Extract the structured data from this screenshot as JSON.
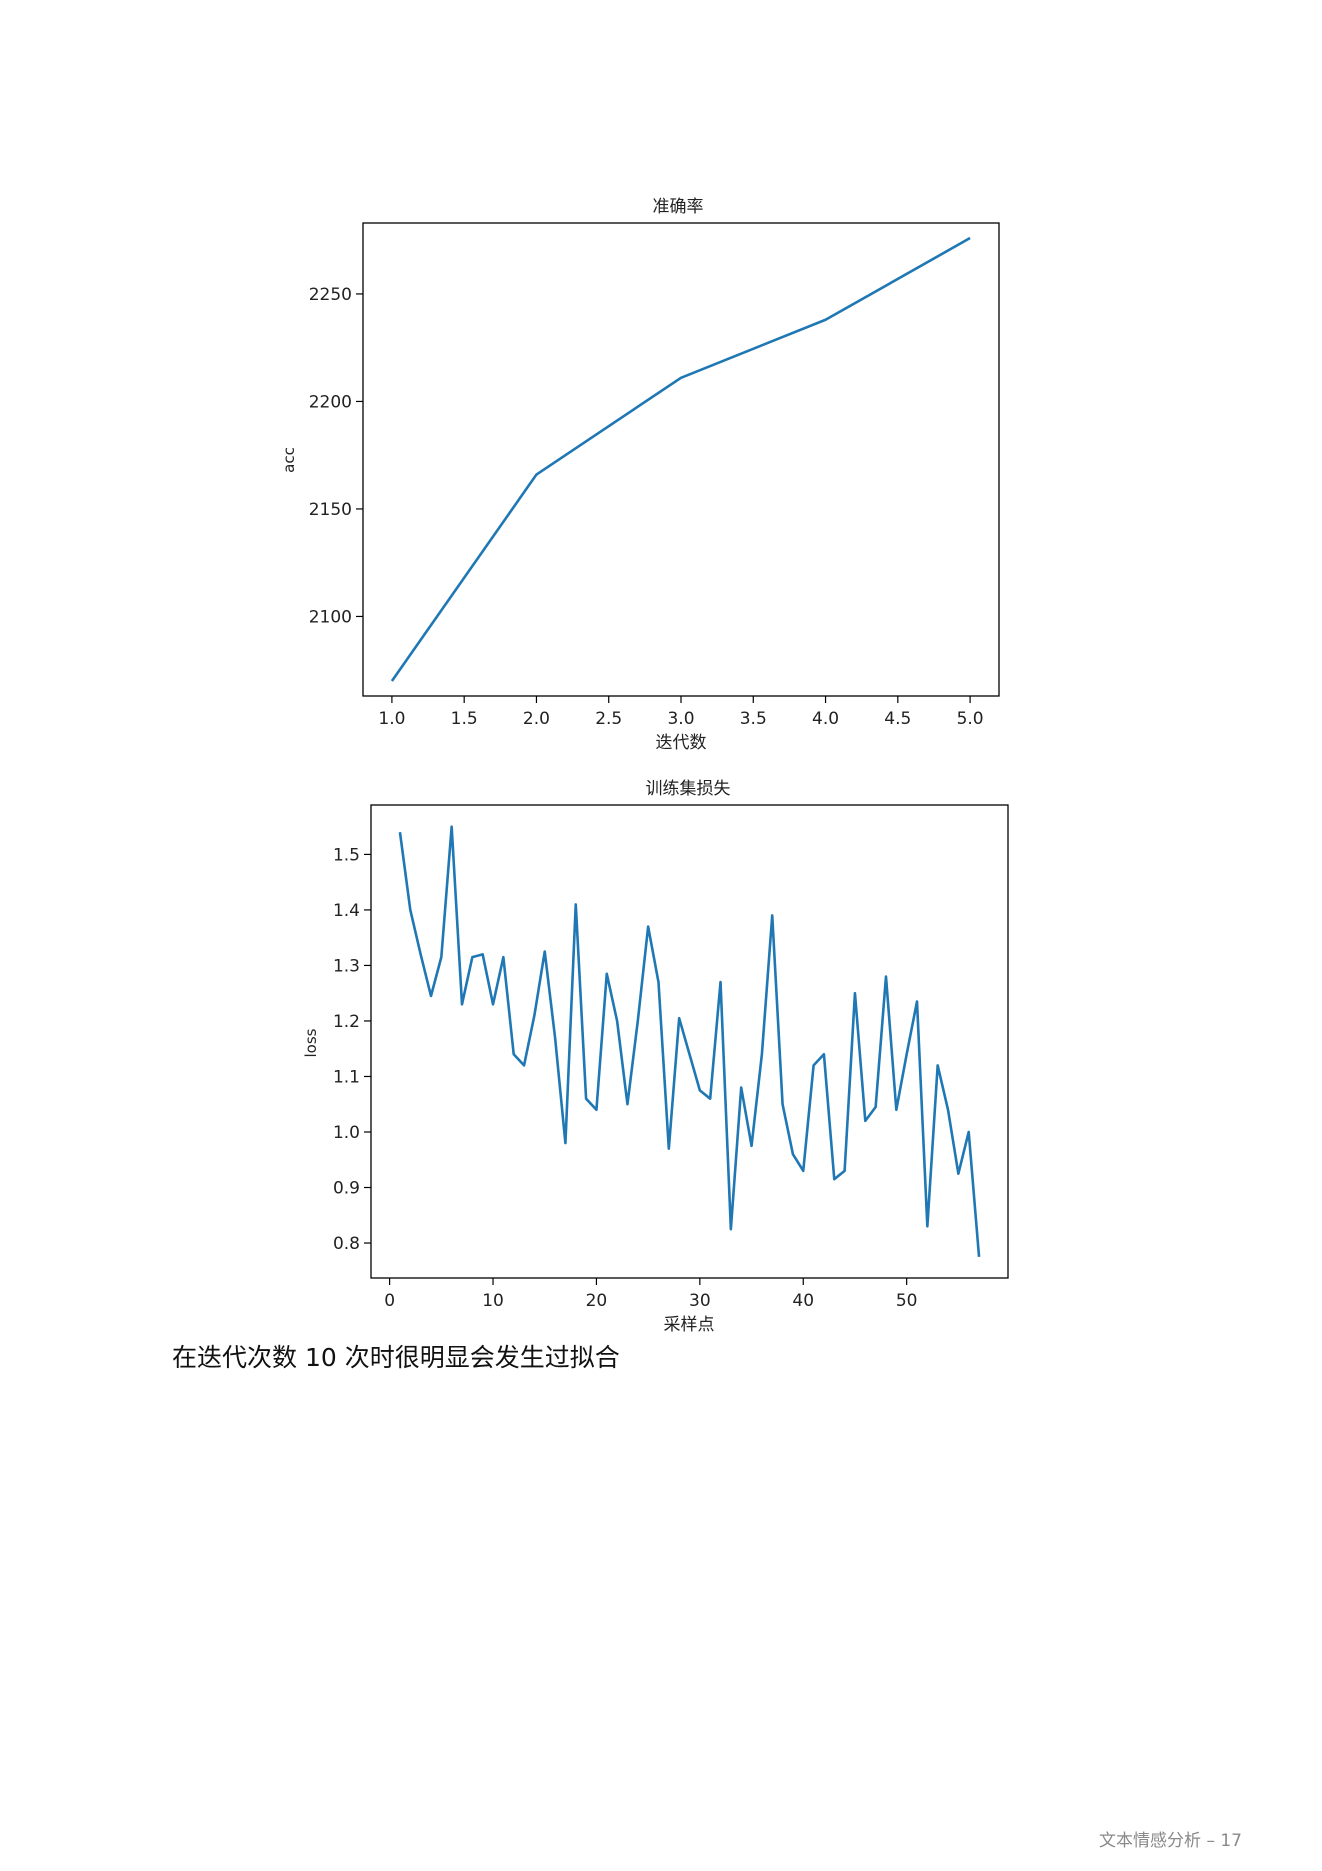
{
  "caption": "在迭代次数 10 次时很明显会发生过拟合",
  "footer": "文本情感分析 – 17",
  "line_color": "#1f77b4",
  "chart_data": [
    {
      "type": "line",
      "title": "准确率",
      "xlabel": "迭代数",
      "ylabel": "acc",
      "xlim": [
        0.8,
        5.2
      ],
      "ylim": [
        2063,
        2283
      ],
      "xticks": [
        1.0,
        1.5,
        2.0,
        2.5,
        3.0,
        3.5,
        4.0,
        4.5,
        5.0
      ],
      "xtick_labels": [
        "1.0",
        "1.5",
        "2.0",
        "2.5",
        "3.0",
        "3.5",
        "4.0",
        "4.5",
        "5.0"
      ],
      "yticks": [
        2100,
        2150,
        2200,
        2250
      ],
      "ytick_labels": [
        "2100",
        "2150",
        "2200",
        "2250"
      ],
      "grid": false,
      "series": [
        {
          "x": [
            1,
            2,
            3,
            4,
            5
          ],
          "y": [
            2070,
            2166,
            2211,
            2238,
            2276
          ]
        }
      ]
    },
    {
      "type": "line",
      "title": "训练集损失",
      "xlabel": "采样点",
      "ylabel": "loss",
      "xlim": [
        -1.8,
        59.8
      ],
      "ylim": [
        0.737,
        1.589
      ],
      "xticks": [
        0,
        10,
        20,
        30,
        40,
        50
      ],
      "xtick_labels": [
        "0",
        "10",
        "20",
        "30",
        "40",
        "50"
      ],
      "yticks": [
        0.8,
        0.9,
        1.0,
        1.1,
        1.2,
        1.3,
        1.4,
        1.5
      ],
      "ytick_labels": [
        "0.8",
        "0.9",
        "1.0",
        "1.1",
        "1.2",
        "1.3",
        "1.4",
        "1.5"
      ],
      "grid": false,
      "series": [
        {
          "x": [
            1,
            2,
            3,
            4,
            5,
            6,
            7,
            8,
            9,
            10,
            11,
            12,
            13,
            14,
            15,
            16,
            17,
            18,
            19,
            20,
            21,
            22,
            23,
            24,
            25,
            26,
            27,
            28,
            29,
            30,
            31,
            32,
            33,
            34,
            35,
            36,
            37,
            38,
            39,
            40,
            41,
            42,
            43,
            44,
            45,
            46,
            47,
            48,
            49,
            50,
            51,
            52,
            53,
            54,
            55,
            56,
            57
          ],
          "y": [
            1.54,
            1.4,
            1.32,
            1.245,
            1.315,
            1.55,
            1.23,
            1.315,
            1.32,
            1.23,
            1.315,
            1.14,
            1.12,
            1.21,
            1.325,
            1.17,
            0.98,
            1.41,
            1.06,
            1.04,
            1.285,
            1.2,
            1.05,
            1.2,
            1.37,
            1.27,
            0.97,
            1.205,
            1.14,
            1.075,
            1.06,
            1.27,
            0.825,
            1.08,
            0.975,
            1.14,
            1.39,
            1.05,
            0.96,
            0.93,
            1.12,
            1.14,
            0.915,
            0.93,
            1.25,
            1.02,
            1.045,
            1.28,
            1.04,
            1.14,
            1.235,
            0.83,
            1.12,
            1.04,
            0.925,
            1.0,
            0.775
          ]
        }
      ]
    }
  ]
}
